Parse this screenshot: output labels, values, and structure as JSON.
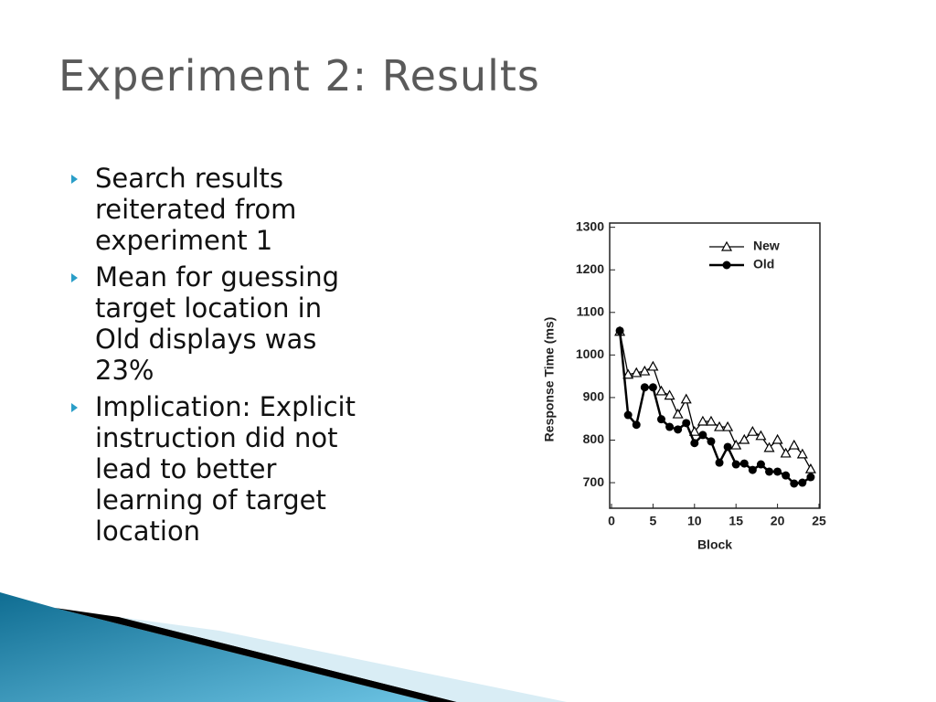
{
  "title": "Experiment 2: Results",
  "bullets": [
    "Search results reiterated from experiment 1",
    "Mean for guessing target location in Old displays was 23%",
    "Implication: Explicit instruction did not lead to better learning of target location"
  ],
  "chart_data": {
    "type": "line",
    "x_label": "Block",
    "y_label": "Response Time (ms)",
    "x": [
      1,
      2,
      3,
      4,
      5,
      6,
      7,
      8,
      9,
      10,
      11,
      12,
      13,
      14,
      15,
      16,
      17,
      18,
      19,
      20,
      21,
      22,
      23,
      24
    ],
    "series": [
      {
        "name": "New",
        "color": "#000000",
        "marker": "triangle",
        "values": [
          1055,
          954,
          958,
          962,
          973,
          915,
          905,
          861,
          896,
          820,
          844,
          844,
          831,
          831,
          788,
          801,
          820,
          810,
          782,
          801,
          769,
          788,
          767,
          732
        ]
      },
      {
        "name": "Old",
        "color": "#000000",
        "marker": "circle",
        "values": [
          1057,
          859,
          836,
          924,
          924,
          849,
          831,
          825,
          840,
          793,
          812,
          797,
          747,
          784,
          743,
          745,
          730,
          743,
          726,
          726,
          717,
          698,
          700,
          713
        ]
      }
    ],
    "xlim": [
      0,
      25
    ],
    "xticks": [
      0,
      5,
      10,
      15,
      20,
      25
    ],
    "ylim": [
      640,
      1310
    ],
    "yticks": [
      700,
      800,
      900,
      1000,
      1100,
      1200,
      1300
    ],
    "legend": "upper right"
  }
}
